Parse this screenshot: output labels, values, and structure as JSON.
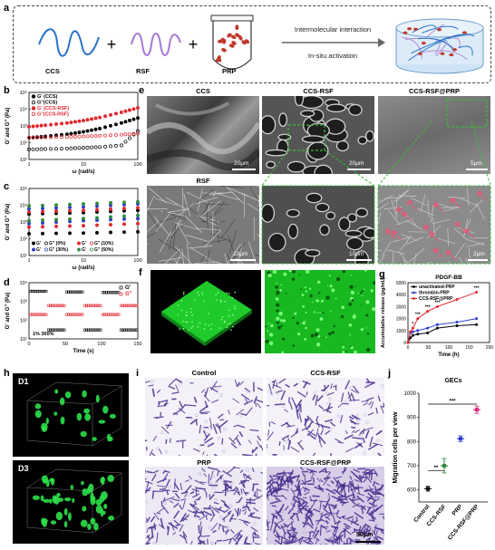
{
  "panel_a": {
    "label": "a",
    "items": [
      "CCS",
      "RSF",
      "PRP"
    ],
    "plus": "+",
    "arrow_top": "Intermolecular interaction",
    "arrow_bottom": "In-situ activation"
  },
  "panel_b": {
    "label": "b",
    "legend": [
      "G' (CCS)",
      "G''(CCS)",
      "G' (CCS-RSF)",
      "G''(CCS-RSF)"
    ],
    "ylabel": "G' and G'' (Pa)",
    "xlabel": "ω (rad/s)",
    "yticks": [
      "10⁵",
      "10⁴",
      "10³",
      "10²",
      "10¹"
    ],
    "xticks": [
      "1",
      "10",
      "100"
    ]
  },
  "panel_c": {
    "label": "c",
    "legend_row1": [
      "G'",
      "G'' (0%)",
      "G'",
      "G'' (10%)"
    ],
    "legend_row2": [
      "G'",
      "G'' (30%)",
      "G'",
      "G'' (50%)"
    ],
    "ylabel": "G' and G'' (Pa)",
    "xlabel": "ω (rad/s)",
    "yticks": [
      "10⁵",
      "10⁴",
      "10³",
      "10²",
      "10¹"
    ],
    "xticks": [
      "1",
      "10",
      "100"
    ]
  },
  "panel_d": {
    "label": "d",
    "legend": [
      "G'",
      "G''"
    ],
    "annotation": "1%  300%",
    "ylabel": "G' and G'' (Pa)",
    "xlabel": "Time (s)",
    "yticks": [
      "10⁴",
      "10³",
      "10²",
      "10¹"
    ],
    "xticks": [
      "0",
      "50",
      "100",
      "150"
    ]
  },
  "panel_e": {
    "label": "e",
    "titles": [
      "CCS",
      "CCS-RSF",
      "CCS-RSF@PRP"
    ],
    "bottom_title": "RSF",
    "scalebars": [
      "20μm",
      "20μm",
      "5μm",
      "10μm",
      "10μm",
      "2μm"
    ]
  },
  "panel_f": {
    "label": "f"
  },
  "panel_g": {
    "label": "g",
    "title": "PDGF-BB",
    "legend": [
      "unactivated-PRP",
      "thrombin-PRP",
      "CCS-RSF@PRP"
    ],
    "ylabel": "Accumulative release (pg/mL)",
    "xlabel": "Time (h)",
    "yticks": [
      "0",
      "1000",
      "2000",
      "3000",
      "4000",
      "5000"
    ],
    "xticks": [
      "0",
      "50",
      "100",
      "150",
      "200"
    ],
    "stars": [
      "*",
      "***",
      "***",
      "***",
      "***"
    ]
  },
  "panel_h": {
    "label": "h",
    "days": [
      "D1",
      "D3"
    ]
  },
  "panel_i": {
    "label": "i",
    "titles": [
      "Control",
      "CCS-RSF",
      "PRP",
      "CCS-RSF@PRP"
    ],
    "scalebar": "50μm"
  },
  "panel_j": {
    "label": "j",
    "title": "GECs",
    "ylabel": "Migration cells per view",
    "yticks": [
      "600",
      "700",
      "800",
      "900",
      "1000"
    ],
    "categories": [
      "Control",
      "CCS-RSF",
      "PRP",
      "CCS-RSF@PRP"
    ],
    "sig": [
      "**",
      "***"
    ]
  },
  "chart_data": [
    {
      "type": "line",
      "id": "b",
      "xlabel": "ω (rad/s)",
      "ylabel": "G' and G'' (Pa)",
      "xscale": "log",
      "yscale": "log",
      "xlim": [
        1,
        100
      ],
      "ylim": [
        10,
        100000
      ],
      "series": [
        {
          "name": "G' (CCS)",
          "color": "#000000",
          "filled": true,
          "x": [
            1,
            2,
            5,
            10,
            20,
            50,
            100
          ],
          "y": [
            200,
            240,
            320,
            450,
            700,
            1500,
            3000
          ]
        },
        {
          "name": "G''(CCS)",
          "color": "#000000",
          "filled": false,
          "x": [
            1,
            2,
            5,
            10,
            20,
            50,
            100
          ],
          "y": [
            40,
            42,
            45,
            50,
            55,
            70,
            500
          ]
        },
        {
          "name": "G' (CCS-RSF)",
          "color": "#e3262c",
          "filled": true,
          "x": [
            1,
            2,
            5,
            10,
            20,
            50,
            100
          ],
          "y": [
            900,
            1100,
            1500,
            2100,
            3200,
            6500,
            12000
          ]
        },
        {
          "name": "G''(CCS-RSF)",
          "color": "#e3262c",
          "filled": false,
          "x": [
            1,
            2,
            5,
            10,
            20,
            50,
            100
          ],
          "y": [
            200,
            210,
            220,
            240,
            260,
            300,
            350
          ]
        }
      ]
    },
    {
      "type": "line",
      "id": "c",
      "xlabel": "ω (rad/s)",
      "ylabel": "G' and G'' (Pa)",
      "xscale": "log",
      "yscale": "log",
      "xlim": [
        1,
        100
      ],
      "ylim": [
        10,
        100000
      ],
      "series": [
        {
          "name": "G' (0%)",
          "color": "#000000",
          "x": [
            1,
            10,
            100
          ],
          "y": [
            3000,
            3600,
            5000
          ]
        },
        {
          "name": "G'' (0%)",
          "color": "#000000",
          "x": [
            1,
            10,
            100
          ],
          "y": [
            200,
            220,
            260
          ]
        },
        {
          "name": "G' (10%)",
          "color": "#e3262c",
          "x": [
            1,
            10,
            100
          ],
          "y": [
            4000,
            5000,
            7000
          ]
        },
        {
          "name": "G'' (10%)",
          "color": "#e3262c",
          "x": [
            1,
            10,
            100
          ],
          "y": [
            500,
            600,
            800
          ]
        },
        {
          "name": "G' (30%)",
          "color": "#2d3dc8",
          "x": [
            1,
            10,
            100
          ],
          "y": [
            6000,
            8000,
            12000
          ]
        },
        {
          "name": "G'' (30%)",
          "color": "#2d3dc8",
          "x": [
            1,
            10,
            100
          ],
          "y": [
            800,
            1200,
            1600
          ]
        },
        {
          "name": "G' (50%)",
          "color": "#2e8b3e",
          "x": [
            1,
            10,
            100
          ],
          "y": [
            9000,
            12000,
            16000
          ]
        },
        {
          "name": "G'' (50%)",
          "color": "#2e8b3e",
          "x": [
            1,
            10,
            100
          ],
          "y": [
            1200,
            1600,
            2500
          ]
        }
      ]
    },
    {
      "type": "scatter",
      "id": "d",
      "xlabel": "Time (s)",
      "ylabel": "G' and G'' (Pa)",
      "yscale": "log",
      "xlim": [
        0,
        150
      ],
      "ylim": [
        10,
        10000
      ],
      "series": [
        {
          "name": "G'",
          "color": "#000000",
          "segments": [
            [
              0,
              25,
              3500
            ],
            [
              25,
              50,
              30
            ],
            [
              50,
              75,
              3200
            ],
            [
              75,
              100,
              30
            ],
            [
              100,
              125,
              3000
            ],
            [
              125,
              150,
              30
            ]
          ]
        },
        {
          "name": "G''",
          "color": "#e3262c",
          "segments": [
            [
              0,
              25,
              200
            ],
            [
              25,
              50,
              600
            ],
            [
              50,
              75,
              200
            ],
            [
              75,
              100,
              600
            ],
            [
              100,
              125,
              200
            ],
            [
              125,
              150,
              600
            ]
          ]
        }
      ]
    },
    {
      "type": "line",
      "id": "g",
      "title": "PDGF-BB",
      "xlabel": "Time (h)",
      "ylabel": "Accumulative release (pg/mL)",
      "xlim": [
        0,
        200
      ],
      "ylim": [
        0,
        5000
      ],
      "series": [
        {
          "name": "unactivated-PRP",
          "color": "#000000",
          "x": [
            0,
            6,
            12,
            24,
            48,
            72,
            120,
            168
          ],
          "y": [
            0,
            400,
            600,
            700,
            800,
            1200,
            1400,
            1500
          ]
        },
        {
          "name": "thrombin-PRP",
          "color": "#2d3dc8",
          "x": [
            0,
            6,
            12,
            24,
            48,
            72,
            120,
            168
          ],
          "y": [
            0,
            800,
            900,
            1000,
            1200,
            1500,
            1700,
            2000
          ]
        },
        {
          "name": "CCS-RSF@PRP",
          "color": "#e3262c",
          "x": [
            0,
            6,
            12,
            24,
            48,
            72,
            120,
            168
          ],
          "y": [
            0,
            900,
            1200,
            2000,
            2600,
            3000,
            3600,
            4200
          ]
        }
      ]
    },
    {
      "type": "scatter",
      "id": "j",
      "title": "GECs",
      "ylabel": "Migration cells per view",
      "categories": [
        "Control",
        "CCS-RSF",
        "PRP",
        "CCS-RSF@PRP"
      ],
      "ylim": [
        550,
        1000
      ],
      "values": [
        605,
        700,
        812,
        932
      ],
      "errors": [
        10,
        30,
        12,
        15
      ],
      "colors": [
        "#111111",
        "#2e8b3e",
        "#2d3dc8",
        "#e0277c"
      ]
    }
  ]
}
